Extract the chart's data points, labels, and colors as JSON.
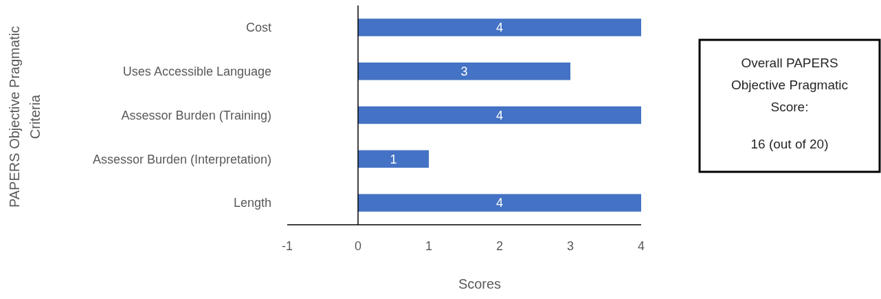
{
  "chart_data": {
    "type": "bar",
    "orientation": "horizontal",
    "categories": [
      "Cost",
      "Uses Accessible Language",
      "Assessor Burden (Training)",
      "Assessor Burden (Interpretation)",
      "Length"
    ],
    "values": [
      4,
      3,
      4,
      1,
      4
    ],
    "color": "#4472c4",
    "xlim": [
      -1,
      4
    ],
    "xticks": [
      -1,
      0,
      1,
      2,
      3,
      4
    ],
    "xlabel": "Scores",
    "ylabel": "PAPERS Objective Pragmatic Criteria",
    "data_labels": true,
    "annotations": [
      "Overall PAPERS Objective Pragmatic Score:",
      "16 (out of 20)"
    ]
  }
}
